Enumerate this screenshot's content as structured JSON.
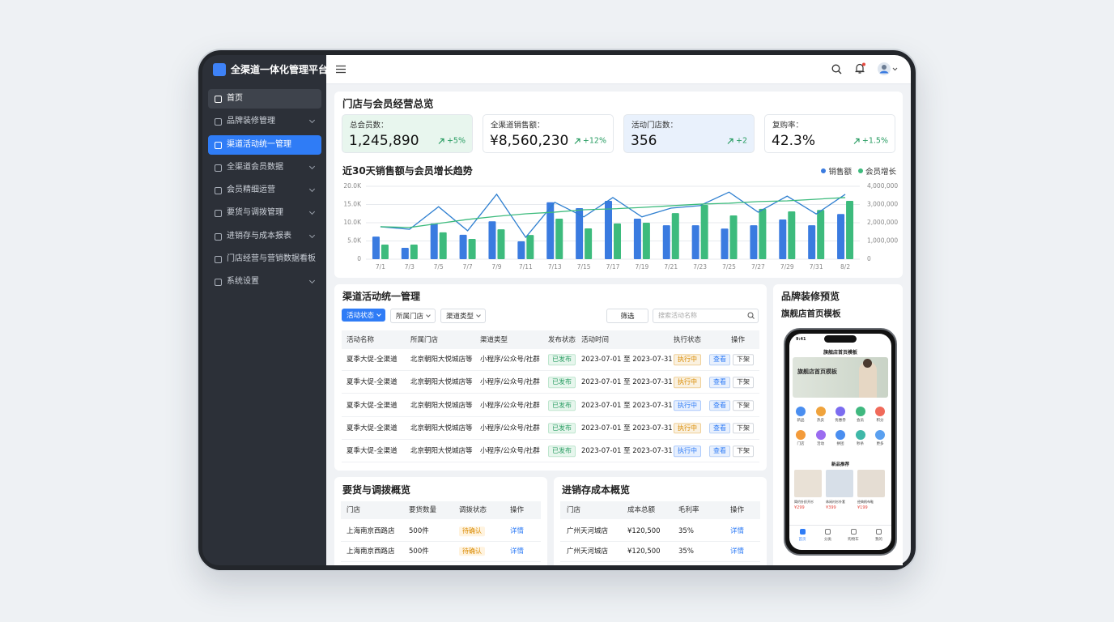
{
  "sidebar": {
    "brand": "全渠道一体化管理平台",
    "menu": [
      {
        "label": "首页",
        "expandable": false
      },
      {
        "label": "品牌装修管理",
        "expandable": true
      },
      {
        "label": "渠道活动统一管理",
        "expandable": false
      },
      {
        "label": "全渠道会员数据",
        "expandable": true
      },
      {
        "label": "会员精细运营",
        "expandable": true
      },
      {
        "label": "要货与调拨管理",
        "expandable": true
      },
      {
        "label": "进销存与成本报表",
        "expandable": true
      },
      {
        "label": "门店经营与营销数据看板",
        "expandable": false
      },
      {
        "label": "系统设置",
        "expandable": true
      }
    ],
    "active": 2
  },
  "overview": {
    "title": "门店与会员经营总览",
    "kpis": [
      {
        "label": "总会员数：",
        "value": "1,245,890",
        "change": "+5%",
        "color": "#e8f6ee"
      },
      {
        "label": "全渠道销售额：",
        "value": "¥8,560,230",
        "change": "+12%",
        "color": "#ffffff"
      },
      {
        "label": "活动门店数：",
        "value": "356",
        "change": "+2",
        "color": "#e9f1fc"
      },
      {
        "label": "复购率：",
        "value": "42.3%",
        "change": "+1.5%",
        "color": "#ffffff"
      }
    ]
  },
  "chart_data": {
    "type": "bar",
    "title": "近30天销售额与会员增长趋势",
    "categories": [
      "7/1",
      "7/3",
      "7/5",
      "7/7",
      "7/9",
      "7/11",
      "7/13",
      "7/15",
      "7/17",
      "7/19",
      "7/21",
      "7/23",
      "7/25",
      "7/27",
      "7/29",
      "7/31",
      "8/2"
    ],
    "series": [
      {
        "name": "销售额",
        "color": "#3a7be0",
        "values": [
          6200,
          3100,
          9800,
          6700,
          10400,
          4900,
          15600,
          14000,
          16000,
          11100,
          9300,
          9300,
          8400,
          9300,
          10900,
          9300,
          12400
        ]
      },
      {
        "name": "会员增长",
        "color": "#3dbb7d",
        "axis": "y2",
        "values": [
          800000,
          800000,
          1470000,
          1110000,
          1640000,
          1330000,
          2220000,
          1690000,
          1960000,
          2000000,
          2530000,
          2980000,
          2400000,
          2760000,
          2620000,
          2700000,
          3200000
        ]
      },
      {
        "type": "line",
        "color": "#2e7fd0",
        "values": [
          8900,
          8200,
          14400,
          7800,
          17800,
          6000,
          15600,
          11600,
          16900,
          11600,
          14000,
          14700,
          18400,
          12900,
          17300,
          12400,
          17800
        ]
      },
      {
        "type": "line",
        "color": "#3dbb7d",
        "axis": "y2",
        "values": [
          1780000,
          1740000,
          1960000,
          2180000,
          2350000,
          2490000,
          2580000,
          2710000,
          2760000,
          2840000,
          2930000,
          3020000,
          3070000,
          3160000,
          3200000,
          3290000,
          3380000
        ]
      }
    ],
    "ylim": [
      0,
      20000
    ],
    "yticks": [
      0,
      {
        "value": 5000,
        "label": "5.0K"
      },
      {
        "value": 10000,
        "label": "10.0K"
      },
      {
        "value": 15000,
        "label": "15.0K"
      },
      {
        "value": 20000,
        "label": "20.0K"
      }
    ],
    "y2lim": [
      0,
      4000000
    ],
    "y2ticks": [
      0,
      {
        "value": 1000000,
        "label": "1,000,000"
      },
      {
        "value": 2000000,
        "label": "2,000,000"
      },
      {
        "value": 3000000,
        "label": "3,000,000"
      },
      {
        "value": 4000000,
        "label": "4,000,000"
      }
    ],
    "grid": true,
    "legend": "top-right"
  },
  "channel": {
    "title": "渠道活动统一管理",
    "filters": [
      "活动状态",
      "所属门店",
      "渠道类型"
    ],
    "filter_button": "筛选",
    "search_placeholder": "搜索活动名称",
    "headers": [
      "活动名称",
      "所属门店",
      "渠道类型",
      "发布状态",
      "活动时间",
      "执行状态",
      "操作"
    ],
    "rows": [
      [
        "夏季大促-全渠道",
        "北京朝阳大悦城店等",
        "小程序/公众号/社群",
        "已发布",
        "2023-07-01 至 2023-07-31",
        "执行中"
      ],
      [
        "夏季大促-全渠道",
        "北京朝阳大悦城店等",
        "小程序/公众号/社群",
        "已发布",
        "2023-07-01 至 2023-07-31",
        "执行中"
      ],
      [
        "夏季大促-全渠道",
        "北京朝阳大悦城店等",
        "小程序/公众号/社群",
        "已发布",
        "2023-07-01 至 2023-07-31",
        "执行中"
      ],
      [
        "夏季大促-全渠道",
        "北京朝阳大悦城店等",
        "小程序/公众号/社群",
        "已发布",
        "2023-07-01 至 2023-07-31",
        "执行中"
      ],
      [
        "夏季大促-全渠道",
        "北京朝阳大悦城店等",
        "小程序/公众号/社群",
        "已发布",
        "2023-07-01 至 2023-07-31",
        "执行中"
      ]
    ],
    "status_colors": [
      "#d98a00",
      "#d98a00",
      "#2f7cf6",
      "#d98a00",
      "#2f7cf6"
    ],
    "actions": [
      "查看",
      "下架"
    ]
  },
  "requisition": {
    "title": "要货与调拨概览",
    "headers": [
      "门店",
      "要货数量",
      "调拨状态",
      "操作"
    ],
    "rows": [
      [
        "上海南京西路店",
        "500件",
        "待确认",
        "详情"
      ],
      [
        "上海南京西路店",
        "500件",
        "待确认",
        "详情"
      ]
    ]
  },
  "inventory": {
    "title": "进销存成本概览",
    "headers": [
      "门店",
      "成本总额",
      "毛利率",
      "操作"
    ],
    "rows": [
      [
        "广州天河城店",
        "¥120,500",
        "35%",
        "详情"
      ],
      [
        "广州天河城店",
        "¥120,500",
        "35%",
        "详情"
      ]
    ]
  },
  "brand_preview": {
    "title": "品牌装修预览",
    "subtitle": "旗舰店首页模板",
    "phone": {
      "time": "9:41",
      "header": "旗舰店首页模板",
      "banner": "旗舰店首页模板",
      "icons": [
        "新品",
        "热卖",
        "优惠券",
        "会员",
        "积分",
        "门店",
        "活动",
        "拼团",
        "秒杀",
        "更多"
      ],
      "section": "新品推荐",
      "products": [
        {
          "name": "简约针织开衫",
          "price": "¥299"
        },
        {
          "name": "休闲衬衫外套",
          "price": "¥399"
        },
        {
          "name": "经典帆布鞋",
          "price": "¥199"
        }
      ],
      "nav": [
        "首页",
        "分类",
        "购物车",
        "我的"
      ]
    }
  }
}
